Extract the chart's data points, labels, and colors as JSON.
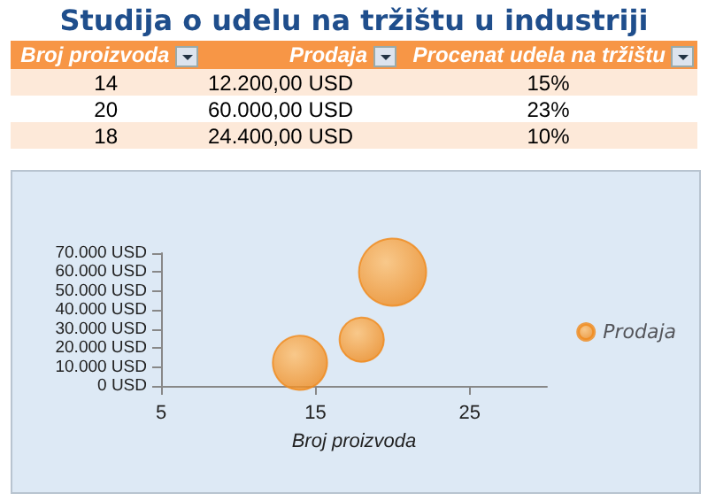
{
  "chart_data": [
    {
      "type": "other",
      "title": "Studija o udelu na tržištu u industriji",
      "annotations": [
        "Broj proizvoda",
        "Prodaja",
        "Procenat udela na tržištu",
        "14",
        "12.200,00 USD",
        "15%",
        "20",
        "60.000,00 USD",
        "23%",
        "18",
        "24.400,00 USD",
        "10%"
      ]
    },
    {
      "type": "bubble",
      "xlabel": "Broj proizvoda",
      "x": [
        14,
        20,
        18
      ],
      "series": [
        {
          "name": "Prodaja",
          "color": "#f08a1c",
          "values": [
            12200,
            60000,
            24400
          ],
          "sizes": [
            0.652,
            1,
            0.435
          ]
        }
      ],
      "xlim": [
        5,
        30
      ],
      "xticks": [
        5,
        15,
        25
      ],
      "ylim": [
        0,
        70000
      ],
      "yticks": [
        {
          "value": 0,
          "label": "0 USD"
        },
        {
          "value": 10000,
          "label": "10.000 USD"
        },
        {
          "value": 20000,
          "label": "20.000 USD"
        },
        {
          "value": 30000,
          "label": "30.000 USD"
        },
        {
          "value": 40000,
          "label": "40.000 USD"
        },
        {
          "value": 50000,
          "label": "50.000 USD"
        },
        {
          "value": 60000,
          "label": "60.000 USD"
        },
        {
          "value": 70000,
          "label": "70.000 USD"
        }
      ],
      "grid": false,
      "legend": "right",
      "marker": "circle"
    }
  ]
}
